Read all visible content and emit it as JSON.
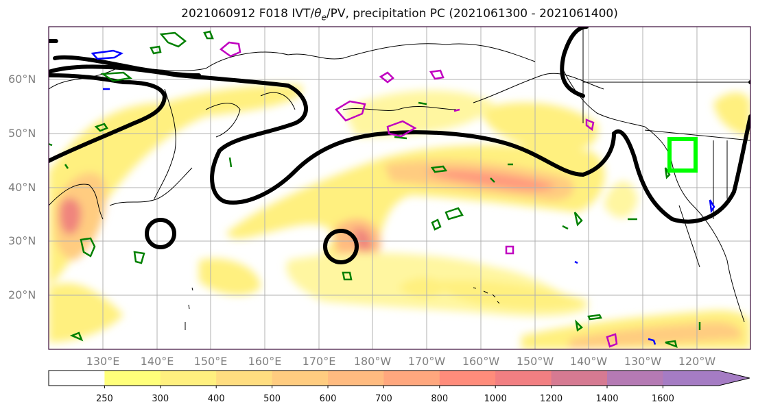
{
  "title": {
    "prefix": "2021060912 F018 IVT/",
    "theta": "θ",
    "theta_sub": "e",
    "suffix": "/PV, precipitation PC (2021061300 - 2021061400)"
  },
  "map": {
    "projection": "PlateCarree",
    "lon_range": [
      120,
      250
    ],
    "lat_range": [
      10,
      70
    ],
    "gridlines": true,
    "lat_labels": [
      "60°N",
      "50°N",
      "40°N",
      "30°N",
      "20°N"
    ],
    "lon_labels": [
      "130°E",
      "140°E",
      "150°E",
      "160°E",
      "170°E",
      "180°W",
      "170°W",
      "160°W",
      "150°W",
      "140°W",
      "130°W",
      "120°W"
    ],
    "box_color": "#00ff00",
    "contour_colors": {
      "theta_e": "#000000",
      "pv_pos": "#008000",
      "pv_mag": "#c000c0",
      "precip": "#0000ff"
    }
  },
  "colorbar": {
    "levels": [
      "250",
      "300",
      "400",
      "500",
      "600",
      "700",
      "800",
      "1000",
      "1200",
      "1400",
      "1600"
    ],
    "colors": [
      "#ffffff",
      "#ffff7a",
      "#fff07f",
      "#ffdd80",
      "#ffcc80",
      "#ffbb80",
      "#ffa77e",
      "#ff8c7b",
      "#f27f82",
      "#d67a92",
      "#b57ab4",
      "#a57cc4"
    ]
  }
}
